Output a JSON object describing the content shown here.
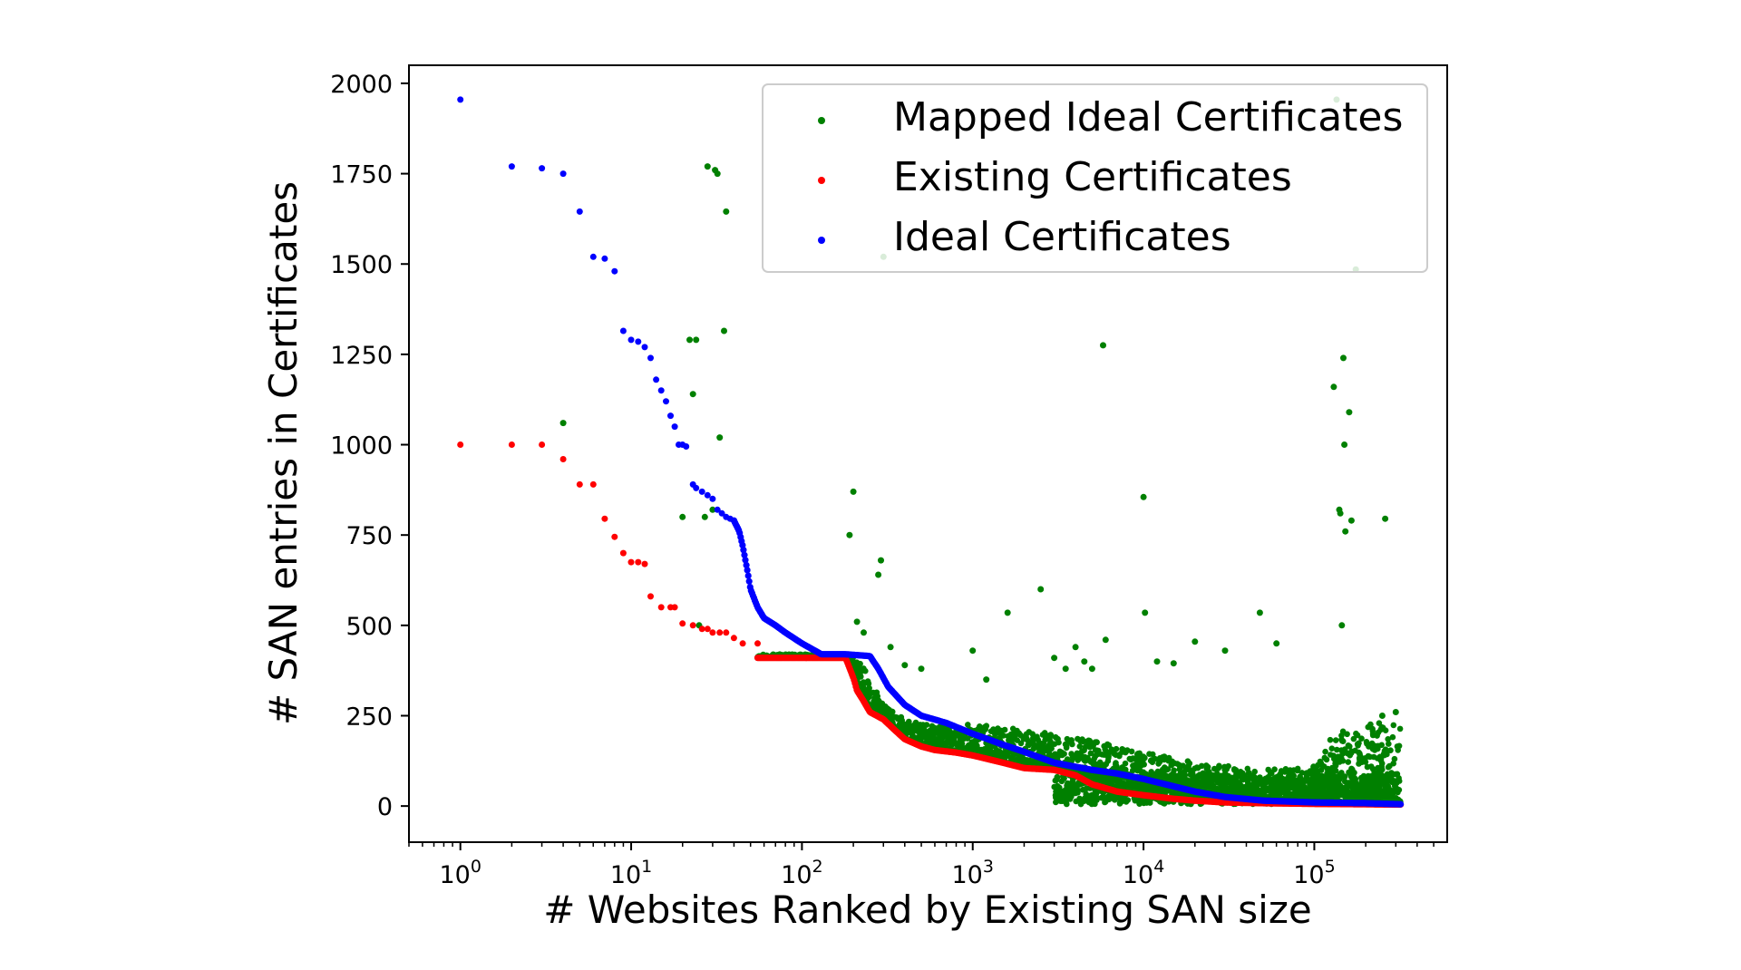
{
  "chart_data": {
    "type": "scatter",
    "xlabel": "# Websites Ranked by Existing SAN size",
    "ylabel": "# SAN entries in Certificates",
    "x_scale": "log",
    "xlim": [
      0.5,
      600000
    ],
    "ylim": [
      -100,
      2050
    ],
    "y_ticks": [
      0,
      250,
      500,
      750,
      1000,
      1250,
      1500,
      1750,
      2000
    ],
    "y_tick_labels": [
      "0",
      "250",
      "500",
      "750",
      "1000",
      "1250",
      "1500",
      "1750",
      "2000"
    ],
    "x_ticks": [
      1,
      10,
      100,
      1000,
      10000,
      100000
    ],
    "x_tick_labels": [
      {
        "base": "10",
        "exp": "0"
      },
      {
        "base": "10",
        "exp": "1"
      },
      {
        "base": "10",
        "exp": "2"
      },
      {
        "base": "10",
        "exp": "3"
      },
      {
        "base": "10",
        "exp": "4"
      },
      {
        "base": "10",
        "exp": "5"
      }
    ],
    "grid": false,
    "legend_position": "top-right",
    "series": [
      {
        "name": "Mapped Ideal Certificates",
        "color": "#008000",
        "points": [
          [
            4,
            1060
          ],
          [
            20,
            800
          ],
          [
            22,
            1290
          ],
          [
            23,
            1140
          ],
          [
            24,
            1290
          ],
          [
            25,
            500
          ],
          [
            27,
            800
          ],
          [
            28,
            1770
          ],
          [
            31,
            1760
          ],
          [
            32,
            1750
          ],
          [
            33,
            1020
          ],
          [
            35,
            1315
          ],
          [
            36,
            1645
          ],
          [
            30,
            820
          ],
          [
            190,
            750
          ],
          [
            200,
            870
          ],
          [
            210,
            510
          ],
          [
            230,
            480
          ],
          [
            280,
            640
          ],
          [
            290,
            680
          ],
          [
            300,
            1520
          ],
          [
            330,
            440
          ],
          [
            400,
            390
          ],
          [
            500,
            380
          ],
          [
            1000,
            430
          ],
          [
            1200,
            350
          ],
          [
            1600,
            535
          ],
          [
            2500,
            600
          ],
          [
            3000,
            410
          ],
          [
            3500,
            380
          ],
          [
            4000,
            440
          ],
          [
            4500,
            400
          ],
          [
            5000,
            380
          ],
          [
            5800,
            1275
          ],
          [
            6000,
            460
          ],
          [
            10000,
            855
          ],
          [
            10200,
            535
          ],
          [
            12000,
            400
          ],
          [
            15000,
            395
          ],
          [
            20000,
            455
          ],
          [
            30000,
            430
          ],
          [
            48000,
            535
          ],
          [
            60000,
            450
          ],
          [
            130000,
            1160
          ],
          [
            135000,
            1955
          ],
          [
            140000,
            820
          ],
          [
            142000,
            810
          ],
          [
            145000,
            500
          ],
          [
            148000,
            1240
          ],
          [
            150000,
            1000
          ],
          [
            152000,
            760
          ],
          [
            160000,
            1090
          ],
          [
            165000,
            790
          ],
          [
            175000,
            1485
          ],
          [
            260000,
            795
          ],
          [
            250000,
            250
          ],
          [
            300000,
            260
          ]
        ]
      },
      {
        "name": "Existing Certificates",
        "color": "#ff0000",
        "points": [
          [
            1,
            1000
          ],
          [
            2,
            1000
          ],
          [
            3,
            1000
          ],
          [
            4,
            960
          ],
          [
            5,
            890
          ],
          [
            6,
            890
          ],
          [
            7,
            795
          ],
          [
            8,
            745
          ],
          [
            9,
            700
          ],
          [
            10,
            675
          ],
          [
            11,
            675
          ],
          [
            12,
            670
          ],
          [
            13,
            580
          ],
          [
            15,
            550
          ],
          [
            17,
            550
          ],
          [
            18,
            550
          ],
          [
            20,
            505
          ],
          [
            23,
            500
          ],
          [
            26,
            490
          ],
          [
            28,
            490
          ],
          [
            30,
            480
          ],
          [
            33,
            480
          ],
          [
            36,
            480
          ],
          [
            40,
            465
          ],
          [
            45,
            450
          ],
          [
            55,
            450
          ]
        ]
      },
      {
        "name": "Ideal Certificates",
        "color": "#0000ff",
        "points": [
          [
            1,
            1955
          ],
          [
            2,
            1770
          ],
          [
            3,
            1765
          ],
          [
            4,
            1750
          ],
          [
            5,
            1645
          ],
          [
            6,
            1520
          ],
          [
            7,
            1515
          ],
          [
            8,
            1480
          ],
          [
            9,
            1315
          ],
          [
            10,
            1290
          ],
          [
            11,
            1285
          ],
          [
            12,
            1270
          ],
          [
            13,
            1240
          ],
          [
            14,
            1180
          ],
          [
            15,
            1150
          ],
          [
            16,
            1120
          ],
          [
            17,
            1080
          ],
          [
            18,
            1050
          ],
          [
            19,
            1000
          ],
          [
            20,
            1000
          ],
          [
            21,
            995
          ],
          [
            23,
            890
          ],
          [
            24,
            880
          ],
          [
            26,
            870
          ],
          [
            28,
            860
          ],
          [
            30,
            850
          ],
          [
            32,
            820
          ],
          [
            34,
            810
          ],
          [
            36,
            800
          ],
          [
            38,
            795
          ],
          [
            40,
            790
          ]
        ]
      }
    ],
    "existing_curve": [
      [
        55,
        410
      ],
      [
        100,
        410
      ],
      [
        150,
        410
      ],
      [
        180,
        410
      ],
      [
        200,
        355
      ],
      [
        210,
        320
      ],
      [
        230,
        290
      ],
      [
        250,
        260
      ],
      [
        300,
        240
      ],
      [
        350,
        210
      ],
      [
        400,
        185
      ],
      [
        500,
        165
      ],
      [
        600,
        155
      ],
      [
        800,
        148
      ],
      [
        1000,
        140
      ],
      [
        1500,
        120
      ],
      [
        2000,
        105
      ],
      [
        3000,
        100
      ],
      [
        4000,
        85
      ],
      [
        5000,
        60
      ],
      [
        7000,
        40
      ],
      [
        10000,
        30
      ],
      [
        15000,
        20
      ],
      [
        20000,
        15
      ],
      [
        30000,
        10
      ],
      [
        50000,
        8
      ],
      [
        100000,
        6
      ],
      [
        200000,
        5
      ],
      [
        320000,
        4
      ]
    ],
    "ideal_curve": [
      [
        40,
        790
      ],
      [
        43,
        760
      ],
      [
        45,
        720
      ],
      [
        48,
        650
      ],
      [
        50,
        600
      ],
      [
        55,
        550
      ],
      [
        60,
        520
      ],
      [
        70,
        500
      ],
      [
        80,
        480
      ],
      [
        100,
        450
      ],
      [
        130,
        420
      ],
      [
        180,
        420
      ],
      [
        250,
        415
      ],
      [
        280,
        380
      ],
      [
        320,
        330
      ],
      [
        400,
        280
      ],
      [
        500,
        250
      ],
      [
        700,
        230
      ],
      [
        1000,
        200
      ],
      [
        1500,
        170
      ],
      [
        2000,
        150
      ],
      [
        3000,
        120
      ],
      [
        5000,
        100
      ],
      [
        7000,
        90
      ],
      [
        10000,
        75
      ],
      [
        20000,
        40
      ],
      [
        30000,
        25
      ],
      [
        50000,
        15
      ],
      [
        100000,
        10
      ],
      [
        200000,
        8
      ],
      [
        320000,
        5
      ]
    ],
    "mapped_band_upper": [
      [
        55,
        420
      ],
      [
        150,
        420
      ],
      [
        200,
        420
      ],
      [
        220,
        400
      ],
      [
        300,
        280
      ],
      [
        400,
        240
      ],
      [
        600,
        220
      ],
      [
        1000,
        230
      ],
      [
        2000,
        210
      ],
      [
        3000,
        200
      ],
      [
        5000,
        180
      ],
      [
        10000,
        150
      ],
      [
        20000,
        120
      ],
      [
        50000,
        100
      ],
      [
        100000,
        110
      ],
      [
        130000,
        200
      ],
      [
        200000,
        230
      ],
      [
        320000,
        240
      ]
    ]
  }
}
